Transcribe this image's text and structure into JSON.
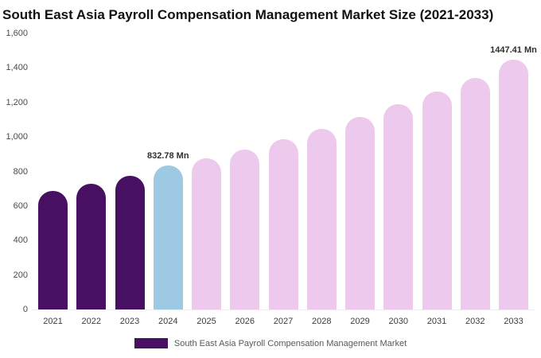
{
  "chart_data": {
    "type": "bar",
    "title": "South East Asia Payroll Compensation Management Market Size (2021-2033)",
    "categories": [
      "2021",
      "2022",
      "2023",
      "2024",
      "2025",
      "2026",
      "2027",
      "2028",
      "2029",
      "2030",
      "2031",
      "2032",
      "2033"
    ],
    "values": [
      685,
      730,
      775,
      832.78,
      875,
      928,
      985,
      1048,
      1115,
      1190,
      1262,
      1340,
      1447.41
    ],
    "unit": "Mn",
    "bar_colors": [
      "#481063",
      "#481063",
      "#481063",
      "#9DC9E3",
      "#EDCAED",
      "#EDCAED",
      "#EDCAED",
      "#EDCAED",
      "#EDCAED",
      "#EDCAED",
      "#EDCAED",
      "#EDCAED",
      "#EDCAED"
    ],
    "ylim": [
      0,
      1600
    ],
    "yticks": [
      0,
      200,
      400,
      600,
      800,
      1000,
      1200,
      1400,
      1600
    ],
    "ytick_labels": [
      "0",
      "200",
      "400",
      "600",
      "800",
      "1,000",
      "1,200",
      "1,400",
      "1,600"
    ],
    "grid": false,
    "legend": {
      "position": "bottom",
      "items": [
        {
          "label": "South East Asia Payroll Compensation Management Market",
          "color": "#481063"
        }
      ]
    },
    "annotations": [
      {
        "index": 3,
        "text": "832.78 Mn"
      },
      {
        "index": 12,
        "text": "1447.41 Mn"
      }
    ]
  }
}
